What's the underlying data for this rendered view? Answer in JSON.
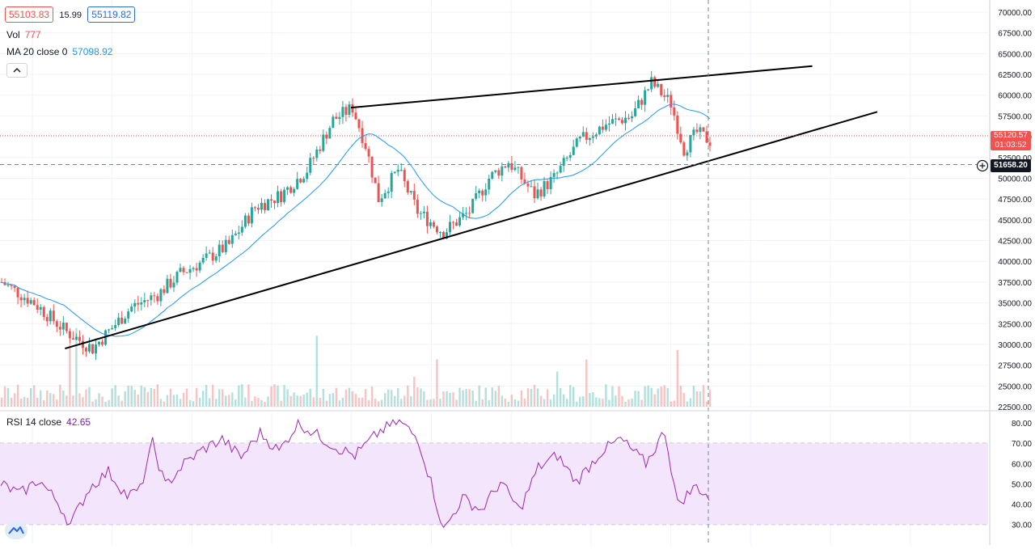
{
  "header": {
    "sell_price": "55103.83",
    "spread": "15.99",
    "buy_price": "55119.82",
    "vol_label": "Vol",
    "vol_value": "777",
    "ma_label": "MA 20 close 0",
    "ma_value": "57098.92"
  },
  "rsi_header": {
    "label": "RSI 14 close",
    "value": "42.65"
  },
  "price_tags": {
    "last_price": "55120.57",
    "countdown": "01:03:52",
    "crosshair_price": "51658.20"
  },
  "icons": {
    "collapse": "chevron-up-icon",
    "crosshair_add": "plus-circle-icon",
    "brand": "tradingview-logo-icon"
  },
  "colors": {
    "up_candle": "#26a69a",
    "down_candle": "#ef5350",
    "ma_line": "#2196f3",
    "rsi_line": "#9c27b0",
    "rsi_band": "#f3e5fb",
    "trendline": "#000000"
  },
  "chart_data": [
    {
      "type": "candlestick",
      "y_axis_ticks": [
        "70000.00",
        "67500.00",
        "65000.00",
        "62500.00",
        "60000.00",
        "57500.00",
        "55000.00",
        "52500.00",
        "50000.00",
        "47500.00",
        "45000.00",
        "42500.00",
        "40000.00",
        "37500.00",
        "35000.00",
        "32500.00",
        "30000.00",
        "27500.00",
        "25000.00",
        "22500.00"
      ],
      "ylim": [
        22500,
        70000
      ],
      "approx_close_path": [
        [
          0,
          37500
        ],
        [
          10,
          35000
        ],
        [
          20,
          31500
        ],
        [
          28,
          29500
        ],
        [
          40,
          34500
        ],
        [
          48,
          36000
        ],
        [
          55,
          38500
        ],
        [
          62,
          40000
        ],
        [
          70,
          42000
        ],
        [
          78,
          46500
        ],
        [
          86,
          48000
        ],
        [
          94,
          51000
        ],
        [
          102,
          57000
        ],
        [
          108,
          58500
        ],
        [
          112,
          54000
        ],
        [
          116,
          47500
        ],
        [
          122,
          51000
        ],
        [
          128,
          46000
        ],
        [
          136,
          43500
        ],
        [
          144,
          46000
        ],
        [
          150,
          50000
        ],
        [
          156,
          52000
        ],
        [
          164,
          48000
        ],
        [
          170,
          50000
        ],
        [
          178,
          54500
        ],
        [
          186,
          56500
        ],
        [
          194,
          57500
        ],
        [
          200,
          61500
        ],
        [
          206,
          59000
        ],
        [
          210,
          53500
        ],
        [
          214,
          55500
        ],
        [
          218,
          54500
        ]
      ],
      "ma_period": 20,
      "trendlines": [
        {
          "name": "upper",
          "from": [
            108,
            58500
          ],
          "to": [
            250,
            63500
          ]
        },
        {
          "name": "lower",
          "from": [
            20,
            29500
          ],
          "to": [
            270,
            58000
          ]
        }
      ],
      "horizontal_lines": [
        55120.57,
        51658.2
      ],
      "volume_visible": true
    },
    {
      "type": "line",
      "indicator": "RSI",
      "y_axis_ticks": [
        "80.00",
        "70.00",
        "60.00",
        "50.00",
        "40.00",
        "30.00"
      ],
      "ylim": [
        27.5,
        82
      ],
      "band": [
        30,
        70
      ],
      "approx_path": [
        [
          0,
          50
        ],
        [
          6,
          45
        ],
        [
          12,
          52
        ],
        [
          18,
          41
        ],
        [
          22,
          30
        ],
        [
          28,
          48
        ],
        [
          34,
          56
        ],
        [
          40,
          44
        ],
        [
          44,
          47
        ],
        [
          48,
          70
        ],
        [
          52,
          49
        ],
        [
          58,
          60
        ],
        [
          64,
          67
        ],
        [
          70,
          72
        ],
        [
          76,
          63
        ],
        [
          82,
          75
        ],
        [
          88,
          66
        ],
        [
          94,
          80
        ],
        [
          100,
          74
        ],
        [
          106,
          68
        ],
        [
          112,
          64
        ],
        [
          120,
          76
        ],
        [
          126,
          81
        ],
        [
          132,
          72
        ],
        [
          136,
          51
        ],
        [
          140,
          27
        ],
        [
          146,
          43
        ],
        [
          152,
          37
        ],
        [
          158,
          51
        ],
        [
          164,
          37
        ],
        [
          170,
          58
        ],
        [
          176,
          64
        ],
        [
          182,
          51
        ],
        [
          190,
          66
        ],
        [
          196,
          72
        ],
        [
          204,
          60
        ],
        [
          210,
          76
        ],
        [
          214,
          40
        ],
        [
          220,
          49
        ],
        [
          224,
          43
        ]
      ]
    }
  ]
}
